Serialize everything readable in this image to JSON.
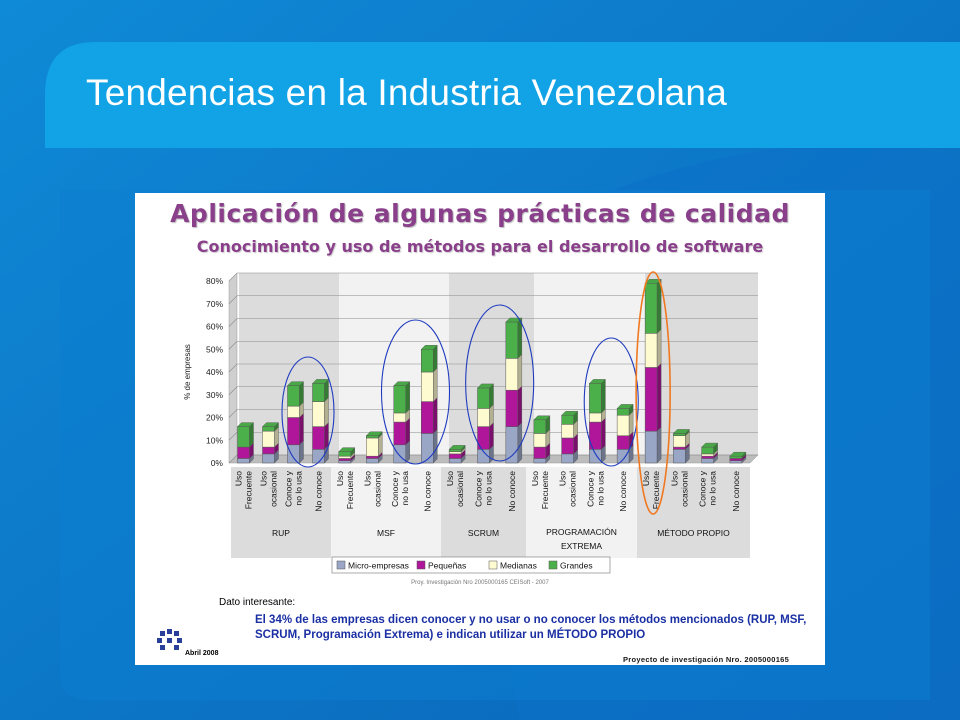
{
  "slide": {
    "title": "Tendencias en la Industria Venezolana"
  },
  "panel": {
    "title": "Aplicación de algunas prácticas de calidad",
    "subtitle": "Conocimiento y uso de métodos para el desarrollo de software",
    "source": "Proy. Investigación Nro 2005000165      CEISoft - 2007",
    "dato_label": "Dato interesante:",
    "dato_text": "El 34% de las empresas dicen conocer y no usar o no conocer los métodos mencionados (RUP, MSF, SCRUM, Programación Extrema) e indican utilizar un MÉTODO PROPIO",
    "date": "Abril 2008",
    "project": "Proyecto de investigación Nro. 2005000165"
  },
  "chart_data": {
    "type": "bar",
    "stacked": true,
    "ylabel": "% de empresas",
    "ylim": [
      0,
      80
    ],
    "yticks": [
      "0%",
      "10%",
      "20%",
      "30%",
      "40%",
      "50%",
      "60%",
      "70%",
      "80%"
    ],
    "groups": [
      {
        "name": "RUP",
        "categories": [
          "Uso Frecuente",
          "Uso ocasional",
          "Conoce y no lo usa",
          "No conoce"
        ]
      },
      {
        "name": "MSF",
        "categories": [
          "Uso Frecuente",
          "Uso ocasional",
          "Conoce y no lo usa",
          "No conoce"
        ]
      },
      {
        "name": "SCRUM",
        "categories": [
          "Uso ocasional",
          "Conoce y no lo usa",
          "No conoce"
        ]
      },
      {
        "name": "PROGRAMACIÓN EXTREMA",
        "categories": [
          "Uso Frecuente",
          "Uso ocasional",
          "Conoce y no lo usa",
          "No conoce"
        ]
      },
      {
        "name": "MÉTODO PROPIO",
        "categories": [
          "Uso Frecuente",
          "Uso ocasional",
          "Conoce y no lo usa",
          "No conoce"
        ]
      }
    ],
    "series": [
      {
        "name": "Micro-empresas",
        "color": "#9aa6c6",
        "values": [
          2,
          4,
          8,
          6,
          1,
          2,
          8,
          13,
          2,
          6,
          16,
          2,
          4,
          6,
          6,
          14,
          6,
          2,
          1
        ]
      },
      {
        "name": "Pequeñas",
        "color": "#b0169a",
        "values": [
          5,
          3,
          12,
          10,
          1,
          1,
          10,
          14,
          2,
          10,
          16,
          5,
          7,
          12,
          6,
          28,
          1,
          1,
          1
        ]
      },
      {
        "name": "Medianas",
        "color": "#fffbd0",
        "values": [
          0,
          7,
          5,
          11,
          1,
          8,
          4,
          13,
          1,
          8,
          14,
          6,
          6,
          4,
          9,
          15,
          5,
          1,
          0
        ]
      },
      {
        "name": "Grandes",
        "color": "#4cb04a",
        "values": [
          9,
          2,
          9,
          8,
          2,
          1,
          12,
          10,
          1,
          9,
          16,
          6,
          4,
          13,
          3,
          22,
          1,
          3,
          1
        ]
      }
    ],
    "legend_position": "bottom",
    "grid": true
  },
  "colors": {
    "slide_background": "#0a6fc4",
    "title_bar": "#12a3e6",
    "accent_title": "#8a3f8a",
    "ellipse_blue": "#1f3bbf",
    "ellipse_orange": "#f07820"
  }
}
